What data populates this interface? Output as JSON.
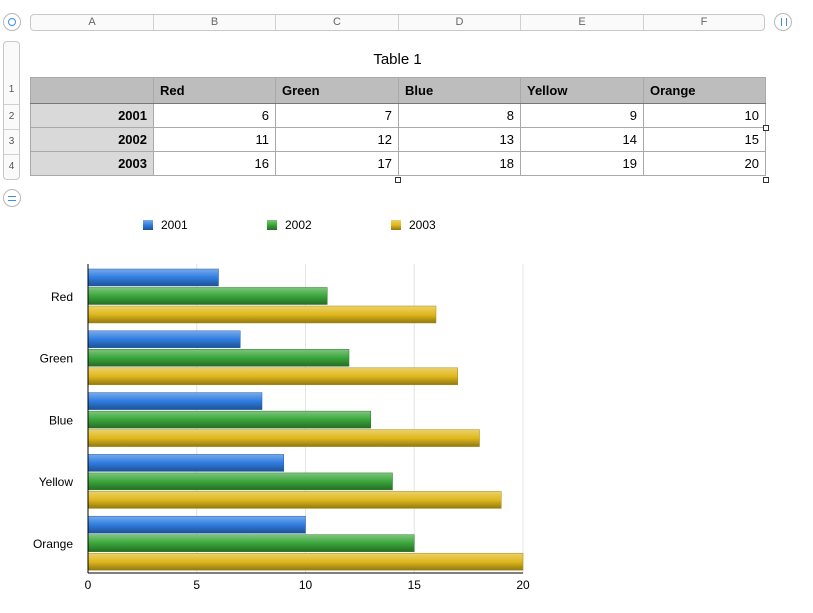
{
  "columns": [
    "A",
    "B",
    "C",
    "D",
    "E",
    "F"
  ],
  "rows": [
    "1",
    "2",
    "3",
    "4"
  ],
  "table": {
    "title": "Table 1",
    "headers": [
      "",
      "Red",
      "Green",
      "Blue",
      "Yellow",
      "Orange"
    ],
    "body": [
      [
        "2001",
        "6",
        "7",
        "8",
        "9",
        "10"
      ],
      [
        "2002",
        "11",
        "12",
        "13",
        "14",
        "15"
      ],
      [
        "2003",
        "16",
        "17",
        "18",
        "19",
        "20"
      ]
    ]
  },
  "colors": {
    "2001": "#2f7de1",
    "2002": "#3aa63a",
    "2003": "#e0b81c"
  },
  "chart_data": {
    "type": "bar",
    "orientation": "horizontal",
    "categories": [
      "Red",
      "Green",
      "Blue",
      "Yellow",
      "Orange"
    ],
    "series": [
      {
        "name": "2001",
        "values": [
          6,
          7,
          8,
          9,
          10
        ]
      },
      {
        "name": "2002",
        "values": [
          11,
          12,
          13,
          14,
          15
        ]
      },
      {
        "name": "2003",
        "values": [
          16,
          17,
          18,
          19,
          20
        ]
      }
    ],
    "title": "",
    "xlabel": "",
    "ylabel": "",
    "xlim": [
      0,
      20
    ],
    "xticks": [
      "0",
      "5",
      "10",
      "15",
      "20"
    ],
    "grid": true,
    "legend_position": "top"
  }
}
